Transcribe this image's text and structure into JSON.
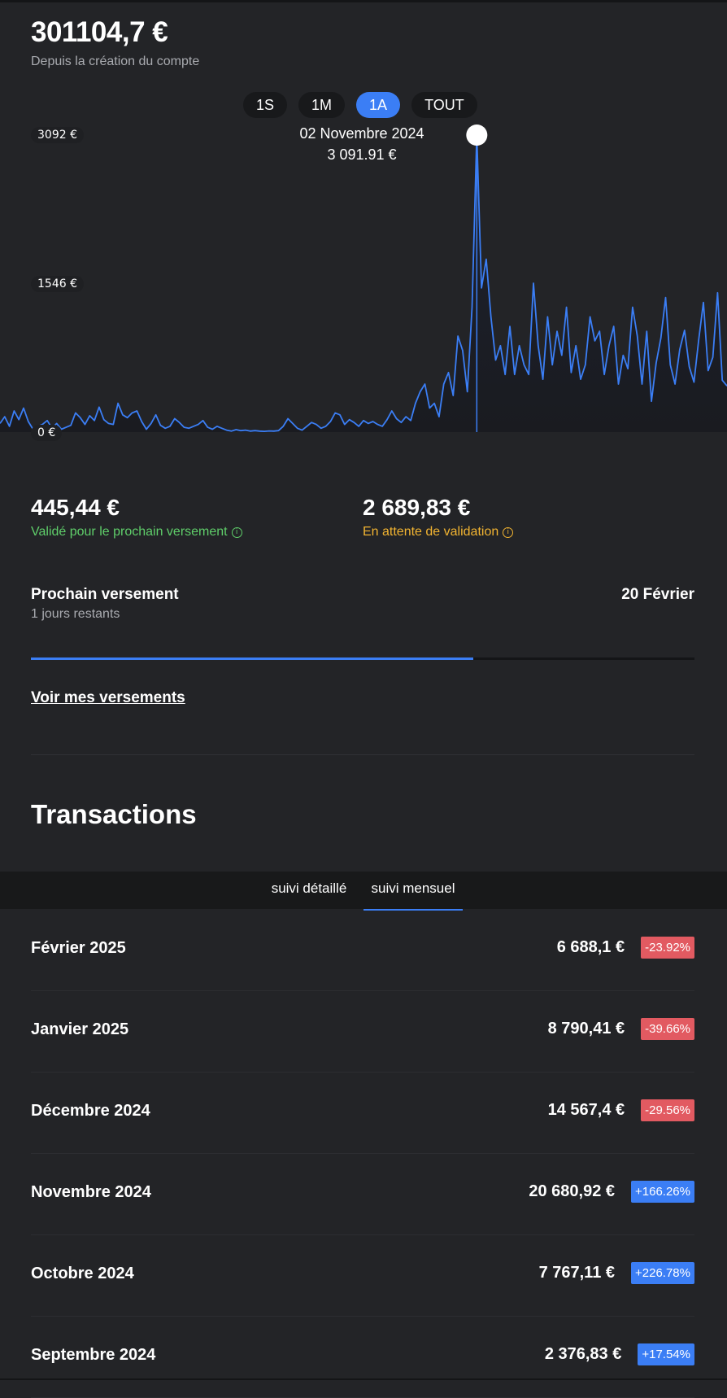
{
  "summary": {
    "total": "301104,7 €",
    "total_caption": "Depuis la création du compte"
  },
  "periods": [
    {
      "label": "1S",
      "active": false
    },
    {
      "label": "1M",
      "active": false
    },
    {
      "label": "1A",
      "active": true
    },
    {
      "label": "TOUT",
      "active": false
    }
  ],
  "chart_data": {
    "type": "line",
    "series": [
      {
        "values": [
          90,
          160,
          60,
          220,
          130,
          250,
          110,
          30,
          60,
          80,
          120,
          40,
          90,
          30,
          50,
          70,
          200,
          150,
          80,
          170,
          120,
          260,
          130,
          90,
          80,
          300,
          180,
          150,
          200,
          220,
          110,
          30,
          90,
          180,
          70,
          40,
          60,
          140,
          100,
          50,
          40,
          60,
          80,
          120,
          50,
          30,
          60,
          40,
          20,
          10,
          25,
          15,
          20,
          10,
          15,
          10,
          8,
          12,
          10,
          15,
          60,
          140,
          90,
          40,
          20,
          60,
          100,
          80,
          40,
          60,
          110,
          200,
          180,
          80,
          130,
          100,
          60,
          120,
          90,
          110,
          80,
          60,
          130,
          220,
          140,
          100,
          160,
          120,
          300,
          420,
          500,
          250,
          300,
          160,
          500,
          620,
          380,
          1000,
          850,
          420,
          1300,
          3092,
          1500,
          1800,
          1200,
          750,
          900,
          600,
          1100,
          600,
          900,
          700,
          600,
          1550,
          900,
          550,
          1200,
          700,
          1050,
          800,
          1300,
          620,
          900,
          550,
          700,
          1200,
          950,
          1050,
          600,
          900,
          1100,
          500,
          800,
          660,
          1300,
          1000,
          500,
          1050,
          320,
          720,
          980,
          1400,
          700,
          500,
          860,
          1060,
          680,
          520,
          960,
          1350,
          640,
          780,
          1450,
          540,
          480
        ]
      }
    ],
    "y_ticks": [
      "3092 €",
      "1546 €",
      "0 €"
    ],
    "ylim": [
      0,
      3092
    ],
    "tooltip": {
      "date": "02 Novembre 2024",
      "value": "3 091.91 €"
    },
    "highlight_index": 101,
    "line_color": "#3b7ef5",
    "grid": false
  },
  "balances": {
    "validated_amount": "445,44 €",
    "validated_label": "Validé pour le prochain versement",
    "pending_amount": "2 689,83 €",
    "pending_label": "En attente de validation",
    "validated_color": "#5fce6a",
    "pending_color": "#f2b431"
  },
  "next_payment": {
    "title": "Prochain versement",
    "remaining": "1 jours restants",
    "date": "20 Février",
    "progress": 0.667,
    "link_label": "Voir mes versements"
  },
  "transactions": {
    "title": "Transactions",
    "tabs": [
      {
        "label": "suivi détaillé",
        "active": false
      },
      {
        "label": "suivi mensuel",
        "active": true
      }
    ],
    "rows": [
      {
        "month": "Février 2025",
        "amount": "6 688,1 €",
        "change": "-23.92%",
        "trend": "down"
      },
      {
        "month": "Janvier 2025",
        "amount": "8 790,41 €",
        "change": "-39.66%",
        "trend": "down"
      },
      {
        "month": "Décembre 2024",
        "amount": "14 567,4 €",
        "change": "-29.56%",
        "trend": "down"
      },
      {
        "month": "Novembre 2024",
        "amount": "20 680,92 €",
        "change": "+166.26%",
        "trend": "up"
      },
      {
        "month": "Octobre 2024",
        "amount": "7 767,11 €",
        "change": "+226.78%",
        "trend": "up"
      },
      {
        "month": "Septembre 2024",
        "amount": "2 376,83 €",
        "change": "+17.54%",
        "trend": "up"
      }
    ],
    "up_color": "#3b7ef5",
    "down_color": "#e25a61"
  }
}
